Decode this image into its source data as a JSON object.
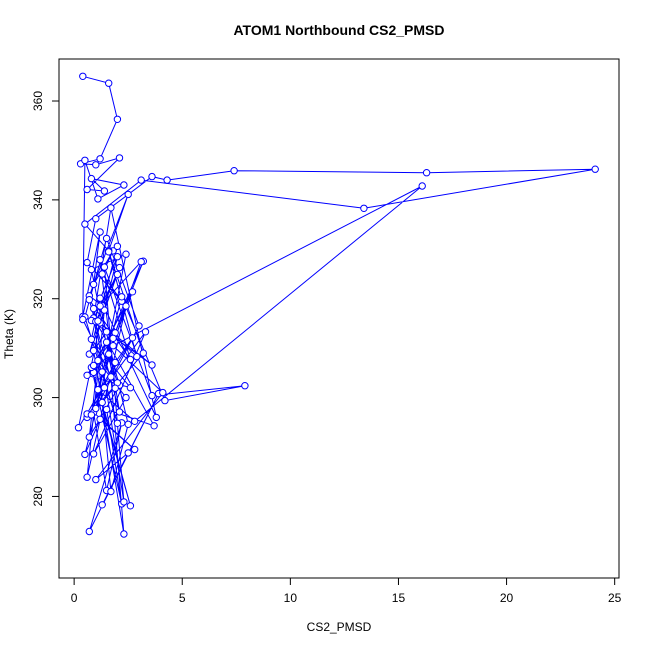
{
  "chart_data": {
    "type": "line",
    "title": "ATOM1 Northbound CS2_PMSD",
    "xlabel": "CS2_PMSD",
    "ylabel": "Theta (K)",
    "xlim": [
      -0.7,
      25.2
    ],
    "ylim": [
      263.5,
      368.5
    ],
    "xticks": [
      0,
      5,
      10,
      15,
      20,
      25
    ],
    "yticks": [
      280,
      300,
      320,
      340,
      360
    ],
    "grid": false,
    "legend": "none",
    "colors": {
      "series": "#0000ff",
      "axis": "#000000"
    },
    "series": [
      {
        "markers": "open-circle",
        "connected": true,
        "x": [
          0.4,
          1.6,
          2.0,
          1.2,
          0.3,
          1.0,
          2.1,
          0.6,
          1.4,
          0.8,
          2.3,
          1.1,
          0.5,
          0.4,
          1.2,
          0.9,
          1.8,
          1.3,
          2.2,
          0.6,
          1.0,
          3.6,
          4.3,
          7.4,
          16.3,
          24.1,
          13.4,
          3.1,
          0.5,
          1.6,
          2.5,
          0.7,
          1.3,
          2.0,
          0.9,
          1.7,
          3.8,
          1.2,
          0.8,
          2.6,
          0.6,
          1.5,
          2.1,
          0.7,
          1.1,
          2.4,
          0.9,
          3.3,
          1.4,
          0.6,
          2.0,
          1.6,
          0.9,
          3.2,
          1.9,
          0.5,
          1.2,
          2.8,
          0.9,
          1.5,
          2.2,
          0.7,
          3.9,
          1.3,
          2.5,
          1.0,
          4.1,
          1.8,
          16.1,
          2.8,
          1.1,
          2.4,
          0.6,
          1.4,
          2.0,
          0.8,
          3.6,
          1.2,
          0.2,
          2.7,
          1.9,
          0.6,
          1.3,
          2.6,
          0.8,
          2.2,
          1.5,
          3.7,
          1.0,
          2.1,
          0.7,
          2.0,
          1.1,
          2.9,
          1.6,
          3.2,
          0.8,
          2.2,
          4.2,
          7.9,
          3.6,
          1.4,
          2.3,
          0.9,
          1.7,
          2.5,
          1.2,
          3.1,
          1.8,
          0.9,
          2.7,
          1.3,
          2.0,
          0.5,
          1.5,
          3.0,
          1.0,
          2.4,
          0.8,
          1.9,
          1.2,
          2.6,
          0.7,
          2.1,
          1.5,
          0.9,
          2.3,
          1.7,
          0.4
        ],
        "y": [
          365.0,
          363.6,
          356.3,
          348.3,
          347.3,
          347.1,
          348.5,
          342.1,
          341.8,
          344.3,
          343.0,
          340.2,
          348.0,
          316.4,
          333.5,
          322.9,
          329.7,
          325.0,
          319.5,
          327.3,
          336.2,
          344.7,
          344.0,
          345.9,
          345.5,
          346.2,
          338.3,
          344.0,
          335.1,
          329.7,
          341.1,
          320.6,
          318.6,
          324.9,
          316.1,
          338.4,
          296.0,
          320.1,
          311.8,
          302.0,
          304.5,
          311.2,
          302.5,
          292.0,
          307.5,
          300.0,
          288.6,
          313.3,
          302.0,
          296.0,
          303.0,
          308.8,
          305.1,
          327.6,
          313.1,
          288.5,
          295.6,
          289.5,
          297.0,
          281.2,
          294.9,
          272.9,
          300.8,
          278.3,
          288.8,
          283.4,
          301.0,
          310.5,
          342.8,
          295.2,
          301.6,
          318.5,
          283.9,
          317.7,
          328.5,
          315.6,
          306.6,
          315.1,
          293.9,
          312.1,
          307.1,
          296.7,
          299.0,
          278.1,
          306.1,
          278.5,
          297.6,
          294.3,
          315.4,
          326.3,
          308.8,
          330.6,
          315.5,
          308.3,
          329.5,
          309.0,
          296.5,
          320.4,
          299.4,
          302.4,
          300.4,
          326.4,
          278.9,
          318.0,
          281.0,
          294.6,
          318.5,
          327.5,
          312.0,
          306.5,
          321.4,
          305.2,
          294.8,
          316.3,
          332.2,
          314.5,
          297.8,
          329.0,
          325.9,
          301.9,
          327.9,
          307.7,
          319.8,
          297.1,
          313.3,
          309.5,
          272.4,
          304.2,
          315.8
        ]
      }
    ]
  }
}
